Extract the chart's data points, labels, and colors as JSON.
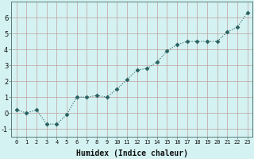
{
  "x": [
    0,
    1,
    2,
    3,
    4,
    5,
    6,
    7,
    8,
    9,
    10,
    11,
    12,
    13,
    14,
    15,
    16,
    17,
    18,
    19,
    20,
    21,
    22,
    23
  ],
  "y": [
    0.2,
    0.0,
    0.2,
    -0.7,
    -0.7,
    -0.1,
    1.0,
    1.0,
    1.1,
    1.0,
    1.5,
    2.1,
    2.7,
    2.8,
    3.2,
    3.9,
    4.3,
    4.5,
    4.5,
    4.5,
    4.5,
    5.1,
    5.4,
    6.3
  ],
  "xlabel": "Humidex (Indice chaleur)",
  "xlim": [
    -0.5,
    23.5
  ],
  "ylim": [
    -1.5,
    7.0
  ],
  "yticks": [
    -1,
    0,
    1,
    2,
    3,
    4,
    5,
    6
  ],
  "xtick_labels": [
    "0",
    "1",
    "2",
    "3",
    "4",
    "5",
    "6",
    "7",
    "8",
    "9",
    "10",
    "11",
    "12",
    "13",
    "14",
    "15",
    "16",
    "17",
    "18",
    "19",
    "20",
    "21",
    "22",
    "23"
  ],
  "line_color": "#286060",
  "marker": "D",
  "marker_size": 2.5,
  "bg_color": "#d5f2f2",
  "grid_color": "#c0a0a0",
  "spine_color": "#5a7a7a",
  "xlabel_fontsize": 7,
  "xtick_fontsize": 5,
  "ytick_fontsize": 6
}
